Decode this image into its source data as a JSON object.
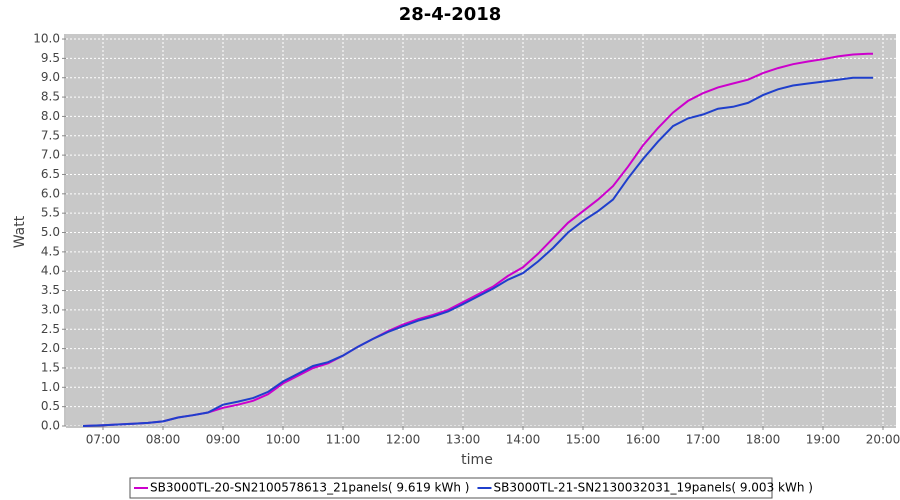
{
  "chart_data": {
    "type": "line",
    "title": "28-4-2018",
    "x_label": "time",
    "y_label": "Watt",
    "x": [
      "06:40",
      "07:00",
      "07:15",
      "07:30",
      "07:45",
      "08:00",
      "08:15",
      "08:30",
      "08:45",
      "09:00",
      "09:15",
      "09:30",
      "09:45",
      "10:00",
      "10:15",
      "10:30",
      "10:45",
      "11:00",
      "11:15",
      "11:30",
      "11:45",
      "12:00",
      "12:15",
      "12:30",
      "12:45",
      "13:00",
      "13:15",
      "13:30",
      "13:45",
      "14:00",
      "14:15",
      "14:30",
      "14:45",
      "15:00",
      "15:15",
      "15:30",
      "15:45",
      "16:00",
      "16:15",
      "16:30",
      "16:45",
      "17:00",
      "17:15",
      "17:30",
      "17:45",
      "18:00",
      "18:15",
      "18:30",
      "18:45",
      "19:00",
      "19:15",
      "19:30",
      "19:45",
      "19:50"
    ],
    "series": [
      {
        "name": "SB3000TL-20-SN2100578613_21panels( 9.619 kWh )",
        "color": "#cc00cc",
        "values": [
          0.0,
          0.02,
          0.04,
          0.06,
          0.08,
          0.12,
          0.22,
          0.28,
          0.35,
          0.47,
          0.55,
          0.65,
          0.82,
          1.1,
          1.3,
          1.5,
          1.62,
          1.82,
          2.05,
          2.25,
          2.45,
          2.62,
          2.76,
          2.87,
          3.0,
          3.2,
          3.4,
          3.6,
          3.88,
          4.1,
          4.45,
          4.85,
          5.25,
          5.55,
          5.85,
          6.2,
          6.7,
          7.25,
          7.7,
          8.1,
          8.4,
          8.6,
          8.75,
          8.85,
          8.95,
          9.12,
          9.25,
          9.35,
          9.42,
          9.48,
          9.55,
          9.6,
          9.62,
          9.62
        ]
      },
      {
        "name": "SB3000TL-21-SN2130032031_19panels( 9.003 kWh )",
        "color": "#1f3fcc",
        "values": [
          0.0,
          0.02,
          0.04,
          0.06,
          0.08,
          0.12,
          0.22,
          0.28,
          0.35,
          0.55,
          0.63,
          0.72,
          0.88,
          1.15,
          1.35,
          1.55,
          1.65,
          1.82,
          2.05,
          2.25,
          2.43,
          2.58,
          2.72,
          2.83,
          2.96,
          3.15,
          3.35,
          3.55,
          3.78,
          3.95,
          4.25,
          4.6,
          5.0,
          5.3,
          5.55,
          5.85,
          6.4,
          6.9,
          7.35,
          7.75,
          7.95,
          8.05,
          8.2,
          8.25,
          8.35,
          8.55,
          8.7,
          8.8,
          8.85,
          8.9,
          8.95,
          9.0,
          9.0,
          9.0
        ]
      }
    ],
    "xlim": [
      "06:23",
      "20:13"
    ],
    "xticks": [
      "07:00",
      "08:00",
      "09:00",
      "10:00",
      "11:00",
      "12:00",
      "13:00",
      "14:00",
      "15:00",
      "16:00",
      "17:00",
      "18:00",
      "19:00",
      "20:00"
    ],
    "ylim": [
      0,
      10.13
    ],
    "yticks": [
      {
        "value": 0,
        "label": "0.0"
      },
      {
        "value": 0.5,
        "label": "0.5"
      },
      {
        "value": 1,
        "label": "1.0"
      },
      {
        "value": 1.5,
        "label": "1.5"
      },
      {
        "value": 2,
        "label": "2.0"
      },
      {
        "value": 2.5,
        "label": "2.5"
      },
      {
        "value": 3,
        "label": "3.0"
      },
      {
        "value": 3.5,
        "label": "3.5"
      },
      {
        "value": 4,
        "label": "4.0"
      },
      {
        "value": 4.5,
        "label": "4.5"
      },
      {
        "value": 5,
        "label": "5.0"
      },
      {
        "value": 5.5,
        "label": "5.5"
      },
      {
        "value": 6,
        "label": "6.0"
      },
      {
        "value": 6.5,
        "label": "6.5"
      },
      {
        "value": 7,
        "label": "7.0"
      },
      {
        "value": 7.5,
        "label": "7.5"
      },
      {
        "value": 8,
        "label": "8.0"
      },
      {
        "value": 8.5,
        "label": "8.5"
      },
      {
        "value": 9,
        "label": "9.0"
      },
      {
        "value": 9.5,
        "label": "9.5"
      },
      {
        "value": 10,
        "label": "10.0"
      }
    ],
    "grid": true
  }
}
